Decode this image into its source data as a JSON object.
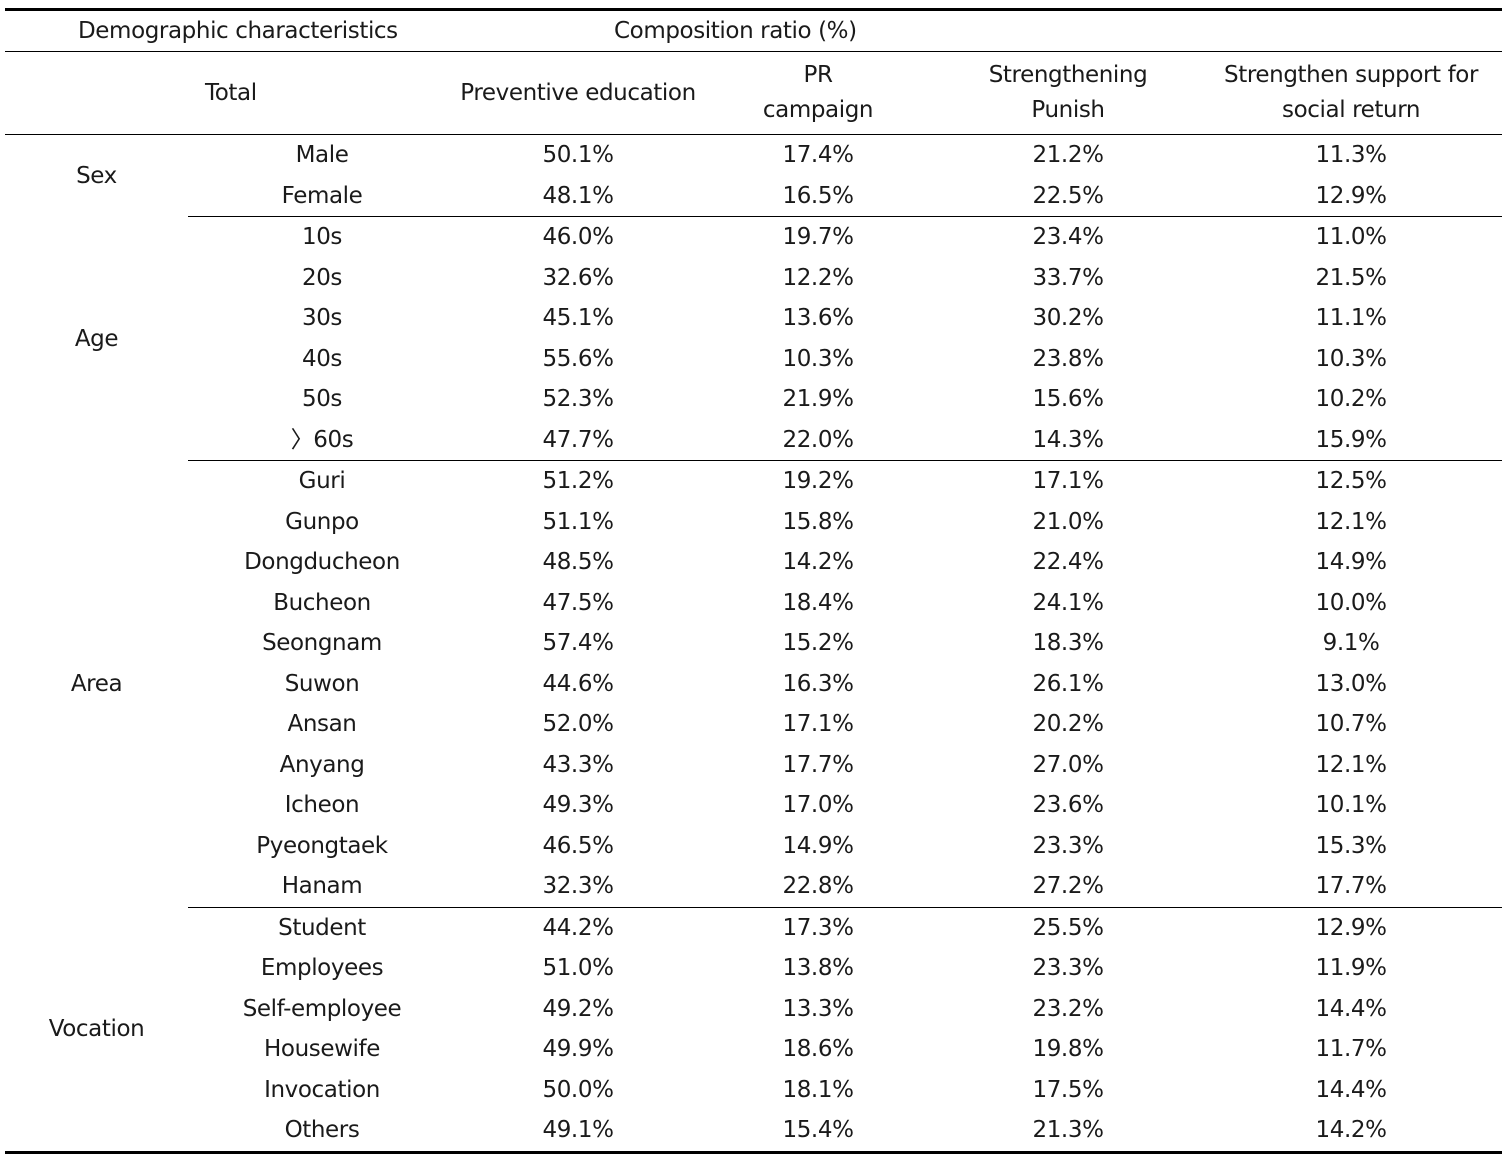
{
  "header": {
    "demographic": "Demographic characteristics",
    "composition": "Composition ratio (%)",
    "total": "Total",
    "preventive": "Preventive education",
    "pr_line1": "PR",
    "pr_line2": "campaign",
    "punish_line1": "Strengthening",
    "punish_line2": "Punish",
    "support_line1": "Strengthen support for",
    "support_line2": "social return"
  },
  "groups": [
    {
      "category": "Sex",
      "rows": [
        {
          "label": "Male",
          "preventive": "50.1%",
          "pr": "17.4%",
          "punish": "21.2%",
          "support": "11.3%"
        },
        {
          "label": "Female",
          "preventive": "48.1%",
          "pr": "16.5%",
          "punish": "22.5%",
          "support": "12.9%"
        }
      ]
    },
    {
      "category": "Age",
      "rows": [
        {
          "label": "10s",
          "preventive": "46.0%",
          "pr": "19.7%",
          "punish": "23.4%",
          "support": "11.0%"
        },
        {
          "label": "20s",
          "preventive": "32.6%",
          "pr": "12.2%",
          "punish": "33.7%",
          "support": "21.5%"
        },
        {
          "label": "30s",
          "preventive": "45.1%",
          "pr": "13.6%",
          "punish": "30.2%",
          "support": "11.1%"
        },
        {
          "label": "40s",
          "preventive": "55.6%",
          "pr": "10.3%",
          "punish": "23.8%",
          "support": "10.3%"
        },
        {
          "label": "50s",
          "preventive": "52.3%",
          "pr": "21.9%",
          "punish": "15.6%",
          "support": "10.2%"
        },
        {
          "label": "〉60s",
          "preventive": "47.7%",
          "pr": "22.0%",
          "punish": "14.3%",
          "support": "15.9%"
        }
      ]
    },
    {
      "category": "Area",
      "rows": [
        {
          "label": "Guri",
          "preventive": "51.2%",
          "pr": "19.2%",
          "punish": "17.1%",
          "support": "12.5%"
        },
        {
          "label": "Gunpo",
          "preventive": "51.1%",
          "pr": "15.8%",
          "punish": "21.0%",
          "support": "12.1%"
        },
        {
          "label": "Dongducheon",
          "preventive": "48.5%",
          "pr": "14.2%",
          "punish": "22.4%",
          "support": "14.9%"
        },
        {
          "label": "Bucheon",
          "preventive": "47.5%",
          "pr": "18.4%",
          "punish": "24.1%",
          "support": "10.0%"
        },
        {
          "label": "Seongnam",
          "preventive": "57.4%",
          "pr": "15.2%",
          "punish": "18.3%",
          "support": "9.1%"
        },
        {
          "label": "Suwon",
          "preventive": "44.6%",
          "pr": "16.3%",
          "punish": "26.1%",
          "support": "13.0%"
        },
        {
          "label": "Ansan",
          "preventive": "52.0%",
          "pr": "17.1%",
          "punish": "20.2%",
          "support": "10.7%"
        },
        {
          "label": "Anyang",
          "preventive": "43.3%",
          "pr": "17.7%",
          "punish": "27.0%",
          "support": "12.1%"
        },
        {
          "label": "Icheon",
          "preventive": "49.3%",
          "pr": "17.0%",
          "punish": "23.6%",
          "support": "10.1%"
        },
        {
          "label": "Pyeongtaek",
          "preventive": "46.5%",
          "pr": "14.9%",
          "punish": "23.3%",
          "support": "15.3%"
        },
        {
          "label": "Hanam",
          "preventive": "32.3%",
          "pr": "22.8%",
          "punish": "27.2%",
          "support": "17.7%"
        }
      ]
    },
    {
      "category": "Vocation",
      "rows": [
        {
          "label": "Student",
          "preventive": "44.2%",
          "pr": "17.3%",
          "punish": "25.5%",
          "support": "12.9%"
        },
        {
          "label": "Employees",
          "preventive": "51.0%",
          "pr": "13.8%",
          "punish": "23.3%",
          "support": "11.9%"
        },
        {
          "label": "Self-employee",
          "preventive": "49.2%",
          "pr": "13.3%",
          "punish": "23.2%",
          "support": "14.4%"
        },
        {
          "label": "Housewife",
          "preventive": "49.9%",
          "pr": "18.6%",
          "punish": "19.8%",
          "support": "11.7%"
        },
        {
          "label": "Invocation",
          "preventive": "50.0%",
          "pr": "18.1%",
          "punish": "17.5%",
          "support": "14.4%"
        },
        {
          "label": "Others",
          "preventive": "49.1%",
          "pr": "15.4%",
          "punish": "21.3%",
          "support": "14.2%"
        }
      ]
    }
  ]
}
